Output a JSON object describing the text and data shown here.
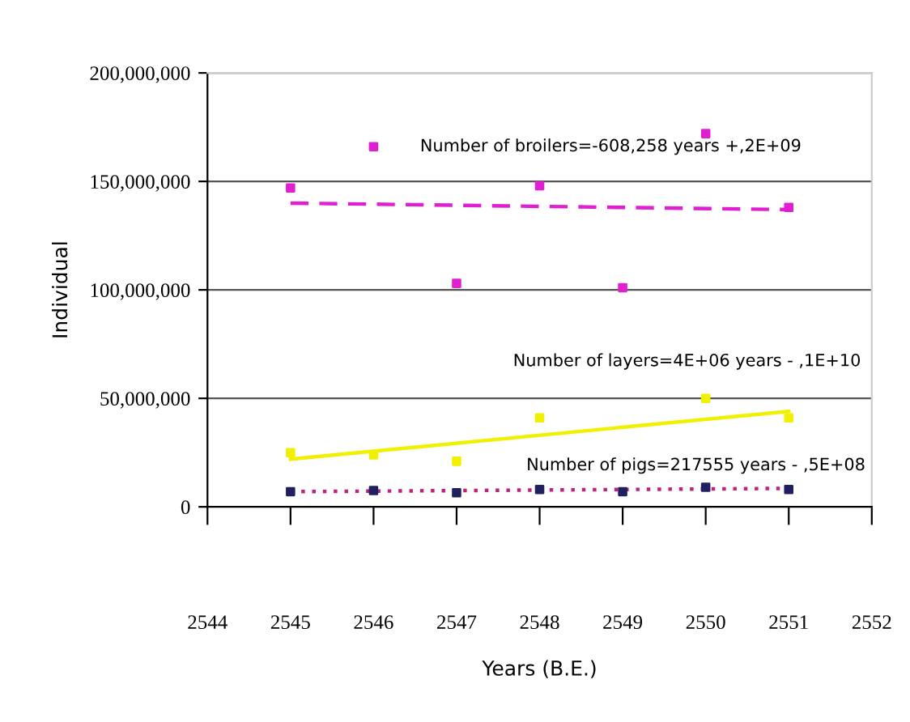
{
  "chart_data": {
    "type": "scatter",
    "xlabel": "Years (B.E.)",
    "ylabel": "Individual",
    "xlim": [
      2544,
      2552
    ],
    "xticks": [
      2544,
      2545,
      2546,
      2547,
      2548,
      2549,
      2550,
      2551,
      2552
    ],
    "ylim": [
      0,
      200000000
    ],
    "yticks": [
      {
        "value": 0,
        "label": "0"
      },
      {
        "value": 50000000,
        "label": "50,000,000"
      },
      {
        "value": 100000000,
        "label": "100,000,000"
      },
      {
        "value": 150000000,
        "label": "150,000,000"
      },
      {
        "value": 200000000,
        "label": "200,000,000"
      }
    ],
    "grid": "y",
    "legend": false,
    "series": [
      {
        "marker": "square",
        "color": "#e020d0",
        "x": [
          2545,
          2546,
          2547,
          2548,
          2549,
          2550,
          2551
        ],
        "values": [
          147000000,
          166000000,
          103000000,
          148000000,
          101000000,
          172000000,
          138000000
        ]
      },
      {
        "marker": "square",
        "color": "#f0f000",
        "x": [
          2545,
          2546,
          2547,
          2548,
          2549,
          2550,
          2551
        ],
        "values": [
          25000000,
          24000000,
          21000000,
          41000000,
          null,
          50000000,
          41000000
        ]
      },
      {
        "marker": "square",
        "color": "#202060",
        "x": [
          2545,
          2546,
          2547,
          2548,
          2549,
          2550,
          2551
        ],
        "values": [
          7000000,
          7500000,
          6500000,
          8000000,
          7000000,
          9000000,
          8000000
        ]
      },
      {
        "type": "line",
        "color": "#e020d0",
        "line_style": "dashed",
        "x": [
          2545,
          2551
        ],
        "values": [
          140000000,
          137000000
        ]
      },
      {
        "type": "line",
        "color": "#f0f000",
        "line_style": "solid",
        "x": [
          2545,
          2551
        ],
        "values": [
          22000000,
          44000000
        ]
      },
      {
        "type": "line",
        "color": "#c02080",
        "line_style": "dotted",
        "x": [
          2545,
          2551
        ],
        "values": [
          7000000,
          8500000
        ]
      }
    ],
    "annotations": [
      "Number of broilers=-608,258 years +,2E+09",
      "Number of layers=4E+06 years - ,1E+10",
      "Number of pigs=217555 years - ,5E+08"
    ]
  }
}
